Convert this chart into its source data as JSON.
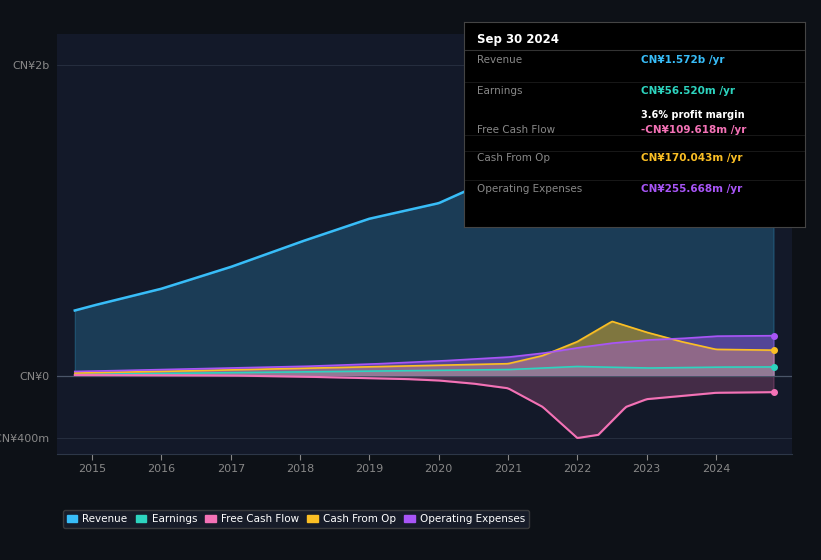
{
  "bg_color": "#0d1117",
  "plot_bg_color": "#131929",
  "colors": {
    "revenue": "#38bdf8",
    "earnings": "#2dd4bf",
    "free_cash_flow": "#f472b6",
    "cash_from_op": "#fbbf24",
    "operating_expenses": "#a855f7"
  },
  "info_box": {
    "date": "Sep 30 2024",
    "revenue_val": "CN¥1.572b",
    "earnings_val": "CN¥56.520m",
    "profit_margin": "3.6%",
    "fcf_val": "-CN¥109.618m",
    "cash_op_val": "CN¥170.043m",
    "op_exp_val": "CN¥255.668m"
  }
}
